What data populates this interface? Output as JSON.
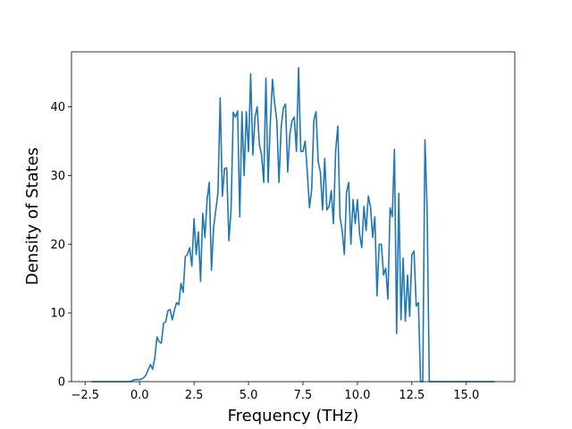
{
  "chart_data": {
    "type": "line",
    "xlabel": "Frequency (THz)",
    "ylabel": "Density of States",
    "x": [
      -2.2,
      -2.1,
      -2.0,
      -1.9,
      -1.8,
      -1.7,
      -1.6,
      -1.5,
      -1.4,
      -1.3,
      -1.2,
      -1.1,
      -1.0,
      -0.9,
      -0.8,
      -0.7,
      -0.6,
      -0.5,
      -0.4,
      -0.3,
      -0.2,
      -0.1,
      0.0,
      0.1,
      0.2,
      0.3,
      0.4,
      0.5,
      0.6,
      0.7,
      0.8,
      0.9,
      1.0,
      1.1,
      1.2,
      1.3,
      1.4,
      1.5,
      1.6,
      1.7,
      1.8,
      1.9,
      2.0,
      2.1,
      2.2,
      2.3,
      2.4,
      2.5,
      2.6,
      2.7,
      2.8,
      2.9,
      3.0,
      3.1,
      3.2,
      3.3,
      3.4,
      3.5,
      3.6,
      3.7,
      3.8,
      3.9,
      4.0,
      4.1,
      4.2,
      4.3,
      4.4,
      4.5,
      4.6,
      4.7,
      4.8,
      4.9,
      5.0,
      5.1,
      5.2,
      5.3,
      5.4,
      5.5,
      5.6,
      5.7,
      5.8,
      5.9,
      6.0,
      6.1,
      6.2,
      6.3,
      6.4,
      6.5,
      6.6,
      6.7,
      6.8,
      6.9,
      7.0,
      7.1,
      7.2,
      7.3,
      7.4,
      7.5,
      7.6,
      7.7,
      7.8,
      7.9,
      8.0,
      8.1,
      8.2,
      8.3,
      8.4,
      8.5,
      8.6,
      8.7,
      8.8,
      8.9,
      9.0,
      9.1,
      9.2,
      9.3,
      9.4,
      9.5,
      9.6,
      9.7,
      9.8,
      9.9,
      10.0,
      10.1,
      10.2,
      10.3,
      10.4,
      10.5,
      10.6,
      10.7,
      10.8,
      10.9,
      11.0,
      11.1,
      11.2,
      11.3,
      11.4,
      11.5,
      11.6,
      11.7,
      11.8,
      11.9,
      12.0,
      12.1,
      12.2,
      12.3,
      12.4,
      12.5,
      12.6,
      12.7,
      12.8,
      12.9,
      13.0,
      13.1,
      13.2,
      13.3,
      13.4,
      13.5,
      13.6,
      13.7,
      13.8,
      13.9,
      14.0,
      14.1,
      14.2,
      14.3,
      14.4,
      14.5,
      14.6,
      14.7,
      14.8,
      14.9,
      15.0,
      15.1,
      15.2,
      15.3,
      15.4,
      15.5,
      15.6,
      15.7,
      15.8,
      15.9,
      16.0,
      16.1,
      16.2,
      16.3
    ],
    "series": [
      {
        "color": "#1f77b4",
        "values": [
          0,
          0,
          0,
          0,
          0,
          0,
          0,
          0,
          0,
          0,
          0,
          0,
          0,
          0,
          0,
          0,
          0,
          0,
          0,
          0.2,
          0.3,
          0.3,
          0.3,
          0.4,
          0.6,
          1.0,
          1.8,
          2.5,
          1.8,
          3.5,
          6.5,
          5.8,
          5.6,
          8.5,
          8.7,
          10.3,
          10.5,
          9.0,
          10.4,
          11.5,
          11.2,
          14.3,
          13.0,
          18.2,
          18.5,
          19.5,
          16.8,
          23.7,
          18.5,
          21.8,
          14.6,
          24.5,
          21.0,
          26.5,
          29.0,
          16.2,
          22.5,
          25.0,
          27.5,
          41.3,
          27.0,
          31.0,
          31.1,
          20.5,
          25.0,
          39.2,
          38.5,
          39.4,
          24.0,
          39.3,
          30.0,
          39.3,
          33.5,
          44.8,
          33.0,
          38.5,
          40.0,
          34.5,
          33.0,
          29.0,
          44.2,
          29.0,
          37.5,
          44.0,
          40.5,
          38.0,
          29.0,
          37.0,
          39.8,
          40.4,
          30.5,
          36.0,
          38.0,
          38.5,
          33.5,
          45.7,
          33.5,
          33.5,
          35.0,
          30.5,
          25.3,
          28.0,
          38.0,
          39.3,
          32.0,
          30.5,
          25.0,
          32.5,
          25.0,
          25.5,
          27.8,
          23.0,
          33.5,
          37.2,
          24.0,
          22.0,
          18.5,
          27.5,
          29.0,
          20.0,
          26.5,
          23.0,
          26.5,
          21.5,
          19.5,
          25.5,
          22.0,
          27.0,
          25.5,
          21.0,
          24.0,
          12.5,
          20.0,
          20.0,
          15.5,
          16.5,
          12.0,
          25.3,
          24.0,
          33.8,
          7.0,
          27.4,
          9.0,
          18.0,
          8.8,
          15.5,
          9.5,
          18.5,
          19.0,
          11.0,
          11.5,
          0,
          0,
          35.2,
          25.0,
          0,
          0,
          0,
          0,
          0,
          0,
          0,
          0,
          0,
          0,
          0,
          0,
          0,
          0,
          0,
          0,
          0,
          0,
          0,
          0,
          0,
          0,
          0,
          0,
          0,
          0,
          0,
          0,
          0,
          0,
          0
        ]
      }
    ],
    "xlim": [
      -3.125,
      17.225
    ],
    "ylim": [
      0,
      48
    ],
    "xticks": [
      {
        "value": -2.5,
        "label": "−2.5"
      },
      {
        "value": 0,
        "label": "0.0"
      },
      2.5,
      {
        "value": 5,
        "label": "5.0"
      },
      7.5,
      {
        "value": 10,
        "label": "10.0"
      },
      12.5,
      {
        "value": 15,
        "label": "15.0"
      }
    ],
    "yticks": [
      0,
      10,
      20,
      30,
      40
    ],
    "grid": false
  }
}
